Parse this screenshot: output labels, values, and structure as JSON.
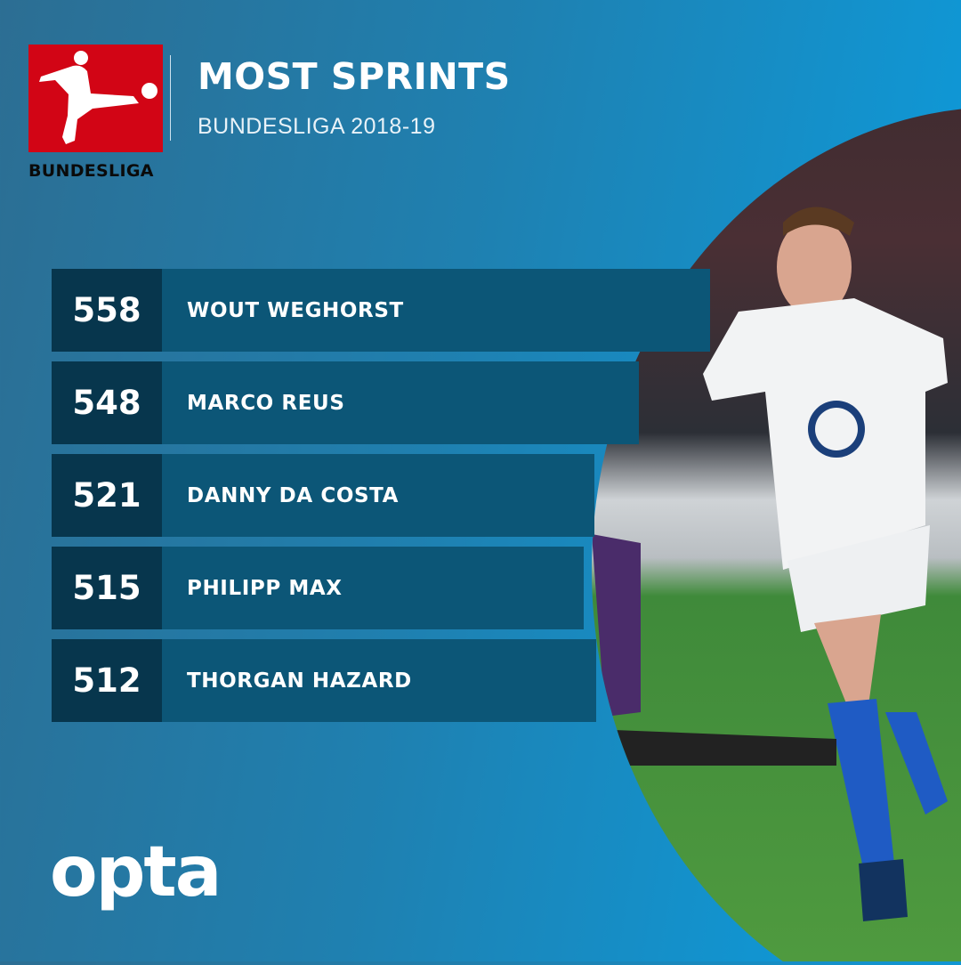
{
  "header": {
    "title": "MOST SPRINTS",
    "subtitle": "BUNDESLIGA 2018-19",
    "logo_text": "BUNDESLIGA"
  },
  "rows": [
    {
      "value": "558",
      "name": "WOUT WEGHORST"
    },
    {
      "value": "548",
      "name": "MARCO REUS"
    },
    {
      "value": "521",
      "name": "DANNY DA COSTA"
    },
    {
      "value": "515",
      "name": "PHILIPP MAX"
    },
    {
      "value": "512",
      "name": "THORGAN HAZARD"
    }
  ],
  "footer": {
    "brand": "opta"
  },
  "colors": {
    "logo_red": "#d20515",
    "value_cell": "#07364d",
    "name_cell": "#0c5677"
  }
}
